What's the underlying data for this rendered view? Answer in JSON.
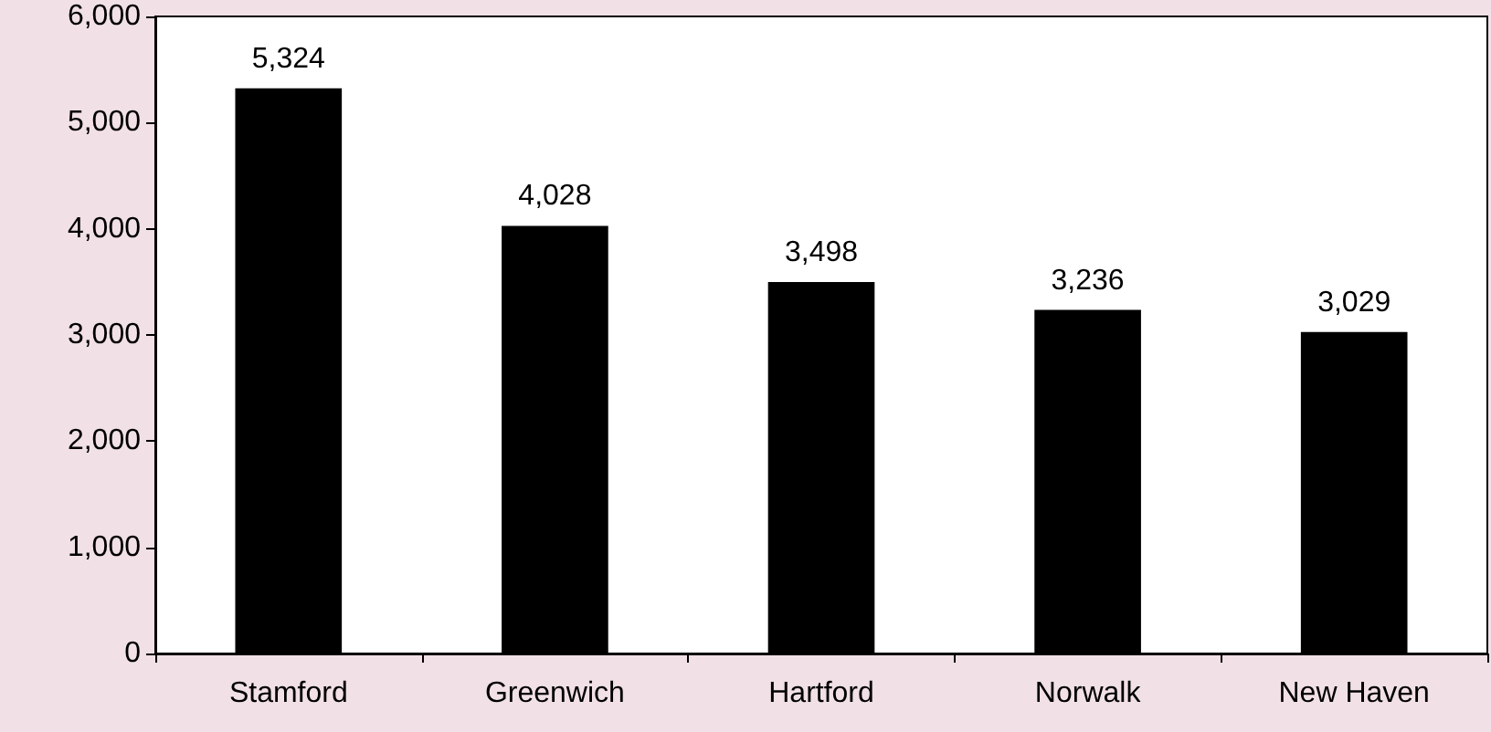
{
  "chart_data": {
    "type": "bar",
    "categories": [
      "Stamford",
      "Greenwich",
      "Hartford",
      "Norwalk",
      "New Haven"
    ],
    "values": [
      5324,
      4028,
      3498,
      3236,
      3029
    ],
    "color": "#000000",
    "value_labels": [
      "5,324",
      "4,028",
      "3,498",
      "3,236",
      "3,029"
    ],
    "ylim": [
      0,
      6000
    ],
    "yticks": [
      0,
      {
        "value": 1000,
        "label": "1,000"
      },
      {
        "value": 2000,
        "label": "2,000"
      },
      {
        "value": 3000,
        "label": "3,000"
      },
      {
        "value": 4000,
        "label": "4,000"
      },
      {
        "value": 5000,
        "label": "5,000"
      },
      {
        "value": 6000,
        "label": "6,000"
      }
    ],
    "grid": false
  }
}
